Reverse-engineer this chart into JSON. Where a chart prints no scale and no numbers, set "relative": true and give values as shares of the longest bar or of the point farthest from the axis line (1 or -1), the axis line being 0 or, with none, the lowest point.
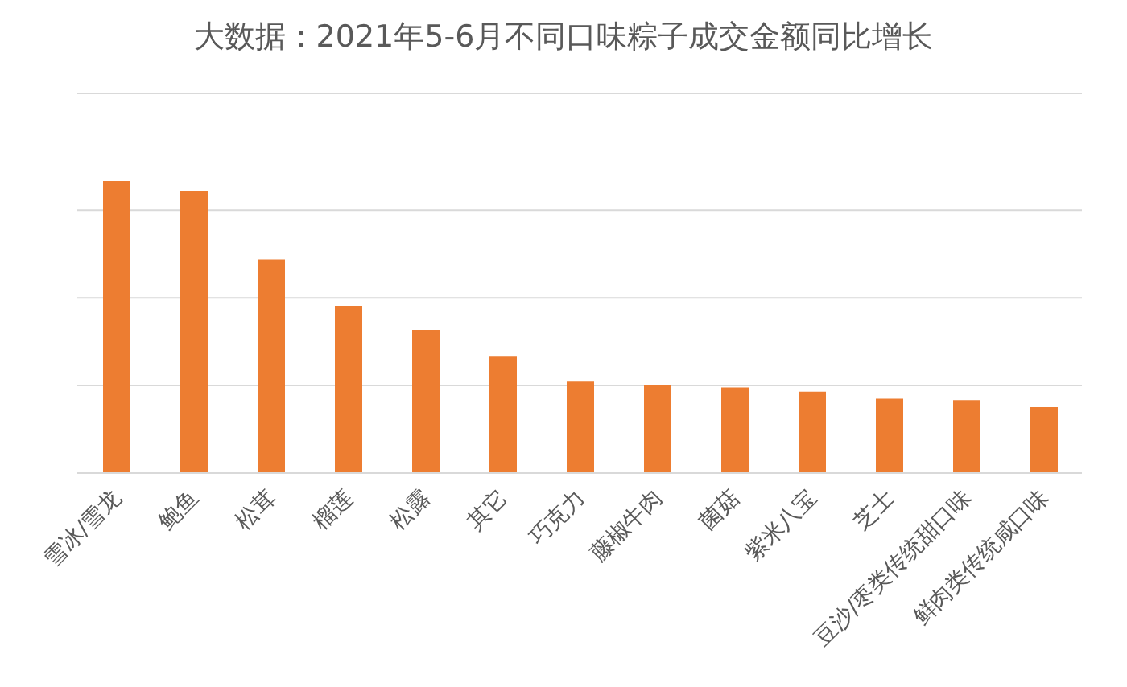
{
  "chart_data": {
    "type": "bar",
    "title": "大数据：2021年5-6月不同口味粽子成交金额同比增长",
    "categories": [
      "雪冰/雪龙",
      "鲍鱼",
      "松茸",
      "榴莲",
      "松露",
      "其它",
      "巧克力",
      "藤椒牛肉",
      "菌菇",
      "紫米八宝",
      "芝士",
      "豆沙/枣类传统甜口味",
      "鲜肉类传统咸口味"
    ],
    "values": [
      1,
      0.966,
      0.731,
      0.572,
      0.49,
      0.399,
      0.313,
      0.303,
      0.293,
      0.279,
      0.255,
      0.25,
      0.226
    ],
    "color": "#ed7d31",
    "relative": true,
    "grid": "y"
  }
}
